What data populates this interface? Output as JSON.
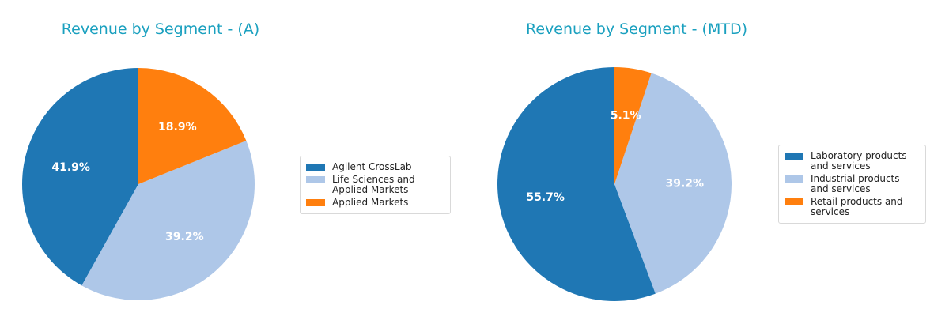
{
  "chart_data": [
    {
      "type": "pie",
      "title": "Revenue by Segment - (A)",
      "categories": [
        "Agilent CrossLab",
        "Life Sciences and Applied Markets",
        "Applied Markets"
      ],
      "values": [
        41.9,
        39.2,
        18.9
      ],
      "value_labels": [
        "41.9%",
        "39.2%",
        "18.9%"
      ],
      "colors": [
        "#1f77b4",
        "#aec7e8",
        "#ff7f0e"
      ],
      "start_angle_deg": 90,
      "direction": "counterclockwise",
      "legend_placement": "right"
    },
    {
      "type": "pie",
      "title": "Revenue by Segment - (MTD)",
      "categories": [
        "Laboratory products and services",
        "Industrial products and services",
        "Retail products and services"
      ],
      "values": [
        55.7,
        39.2,
        5.1
      ],
      "value_labels": [
        "55.7%",
        "39.2%",
        "5.1%"
      ],
      "colors": [
        "#1f77b4",
        "#aec7e8",
        "#ff7f0e"
      ],
      "start_angle_deg": 90,
      "direction": "counterclockwise",
      "legend_placement": "right"
    }
  ]
}
